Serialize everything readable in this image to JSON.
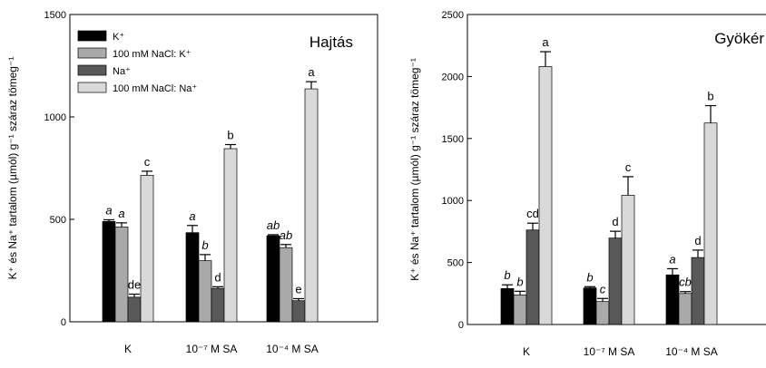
{
  "chart_data": [
    {
      "type": "bar",
      "title": "Hajtás",
      "ylabel": "K⁺ és Na⁺ tartalom (µmól) g⁻¹ száraz tömeg⁻¹",
      "categories": [
        "K",
        "10⁻⁷ M SA",
        "10⁻⁴ M SA"
      ],
      "ylim": [
        0,
        1500
      ],
      "yticks": [
        0,
        500,
        1000,
        1500
      ],
      "legend_position": "top-left",
      "series": [
        {
          "name": "K⁺",
          "color": "#000000",
          "values": [
            490,
            435,
            420
          ],
          "errors": [
            8,
            35,
            5
          ],
          "labels": [
            "a",
            "a",
            "ab"
          ],
          "italic": true
        },
        {
          "name": "100 mM NaCl:  K⁺",
          "color": "#a9a9a9",
          "values": [
            463,
            298,
            362
          ],
          "errors": [
            20,
            30,
            15
          ],
          "labels": [
            "a",
            "b",
            "ab"
          ],
          "italic": true
        },
        {
          "name": "Na⁺",
          "color": "#595959",
          "values": [
            120,
            163,
            103
          ],
          "errors": [
            15,
            8,
            10
          ],
          "labels": [
            "de",
            "d",
            "e"
          ],
          "italic": false
        },
        {
          "name": "100 mM NaCl: Na⁺",
          "color": "#d9d9d9",
          "values": [
            715,
            845,
            1137
          ],
          "errors": [
            20,
            20,
            35
          ],
          "labels": [
            "c",
            "b",
            "a"
          ],
          "italic": false
        }
      ]
    },
    {
      "type": "bar",
      "title": "Gyökér",
      "ylabel": "K⁺ és Na⁺ tartalom (µmól) g⁻¹ száraz tömeg⁻¹",
      "categories": [
        "K",
        "10⁻⁷ M SA",
        "10⁻⁴ M SA"
      ],
      "ylim": [
        0,
        2500
      ],
      "yticks": [
        0,
        500,
        1000,
        1500,
        2000,
        2500
      ],
      "series": [
        {
          "name": "K⁺",
          "color": "#000000",
          "values": [
            290,
            295,
            400
          ],
          "errors": [
            30,
            10,
            50
          ],
          "labels": [
            "b",
            "b",
            "a"
          ],
          "italic": true
        },
        {
          "name": "100 mM NaCl:  K⁺",
          "color": "#a9a9a9",
          "values": [
            238,
            185,
            250
          ],
          "errors": [
            30,
            25,
            15
          ],
          "labels": [
            "b",
            "c",
            "cb"
          ],
          "italic": true
        },
        {
          "name": "Na⁺",
          "color": "#595959",
          "values": [
            762,
            697,
            540
          ],
          "errors": [
            55,
            55,
            60
          ],
          "labels": [
            "cd",
            "d",
            "d"
          ],
          "italic": false
        },
        {
          "name": "100 mM NaCl: Na⁺",
          "color": "#d9d9d9",
          "values": [
            2080,
            1042,
            1625
          ],
          "errors": [
            120,
            150,
            140
          ],
          "labels": [
            "a",
            "c",
            "b"
          ],
          "italic": false
        }
      ]
    }
  ]
}
